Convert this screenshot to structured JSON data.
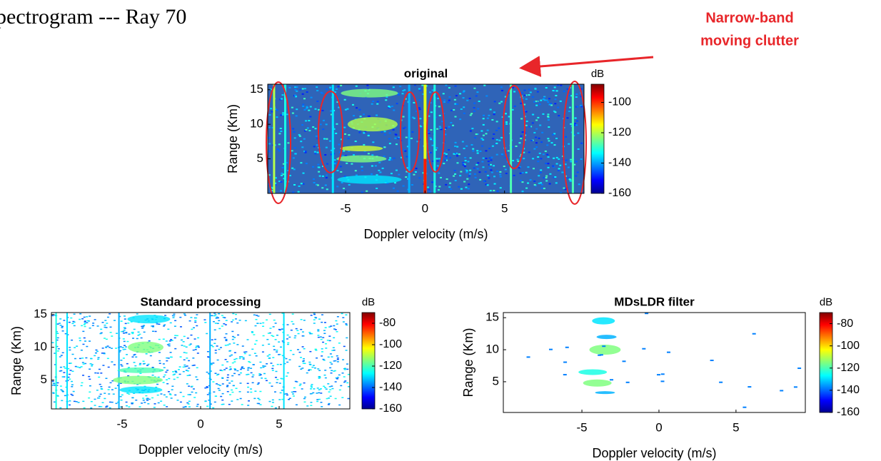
{
  "chart_data": [
    {
      "type": "heatmap",
      "suptitle": "pectrogram --- Ray 70",
      "annotation": [
        "Narrow-band",
        "moving clutter"
      ],
      "title": "original",
      "xlabel": "Doppler velocity (m/s)",
      "ylabel": "Range (Km)",
      "xlim": [
        -9.9,
        10
      ],
      "xticks": [
        -5,
        0,
        5
      ],
      "ylim": [
        0,
        15.8
      ],
      "yticks": [
        5,
        10,
        15
      ],
      "colorbar": {
        "label": "dB",
        "lim": [
          -160,
          -88
        ],
        "ticks": [
          -100,
          -120,
          -140,
          -160
        ]
      }
    },
    {
      "type": "heatmap",
      "title": "Standard processing",
      "xlabel": "Doppler velocity (m/s)",
      "ylabel": "Range (Km)",
      "xlim": [
        -9.5,
        9.5
      ],
      "xticks": [
        -5,
        0,
        5
      ],
      "ylim": [
        0.6,
        15.3
      ],
      "yticks": [
        5,
        10,
        15
      ],
      "colorbar": {
        "label": "dB",
        "lim": [
          -160,
          -70
        ],
        "ticks": [
          -80,
          -100,
          -120,
          -140,
          -160
        ]
      }
    },
    {
      "type": "heatmap",
      "title": "MDsLDR filter",
      "xlabel": "Doppler velocity (m/s)",
      "ylabel": "Range (Km)",
      "xlim": [
        -10.1,
        9.5
      ],
      "xticks": [
        -5,
        0,
        5
      ],
      "ylim": [
        0.2,
        15.8
      ],
      "yticks": [
        5,
        10,
        15
      ],
      "colorbar": {
        "label": "dB",
        "lim": [
          -160,
          -70
        ],
        "ticks": [
          -80,
          -100,
          -120,
          -140,
          -160
        ]
      }
    }
  ]
}
